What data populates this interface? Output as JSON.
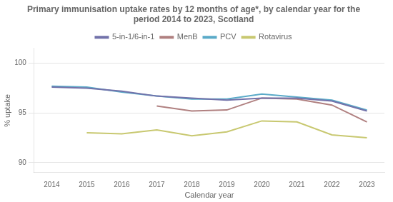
{
  "chart_data": {
    "type": "line",
    "title": [
      "Primary immunisation uptake rates by 12 months of age*, by calendar year for the",
      "period 2014 to 2023, Scotland"
    ],
    "x_label": "Calendar year",
    "y_label": "% uptake",
    "x": [
      2014,
      2015,
      2016,
      2017,
      2018,
      2019,
      2020,
      2021,
      2022,
      2023
    ],
    "series": [
      {
        "name": "5-in-1/6-in-1",
        "color": "#7272aa",
        "values": [
          97.6,
          97.5,
          97.2,
          96.7,
          96.5,
          96.3,
          96.5,
          96.5,
          96.2,
          95.2
        ]
      },
      {
        "name": "MenB",
        "color": "#b08080",
        "values": [
          null,
          null,
          null,
          95.7,
          95.2,
          95.3,
          96.5,
          96.4,
          95.8,
          94.1
        ]
      },
      {
        "name": "PCV",
        "color": "#5aaac8",
        "values": [
          97.7,
          97.6,
          97.1,
          96.7,
          96.4,
          96.4,
          96.9,
          96.6,
          96.3,
          95.3
        ]
      },
      {
        "name": "Rotavirus",
        "color": "#c8c870",
        "values": [
          null,
          93.0,
          92.9,
          93.3,
          92.7,
          93.1,
          94.2,
          94.1,
          92.8,
          92.5
        ]
      }
    ],
    "xlim": [
      2013.5,
      2023.5
    ],
    "xticks": [
      2014,
      2015,
      2016,
      2017,
      2018,
      2019,
      2020,
      2021,
      2022,
      2023
    ],
    "ylim": [
      89.0,
      101.5
    ],
    "yticks": [
      90,
      95,
      100
    ],
    "grid": "y",
    "legend": "top"
  }
}
